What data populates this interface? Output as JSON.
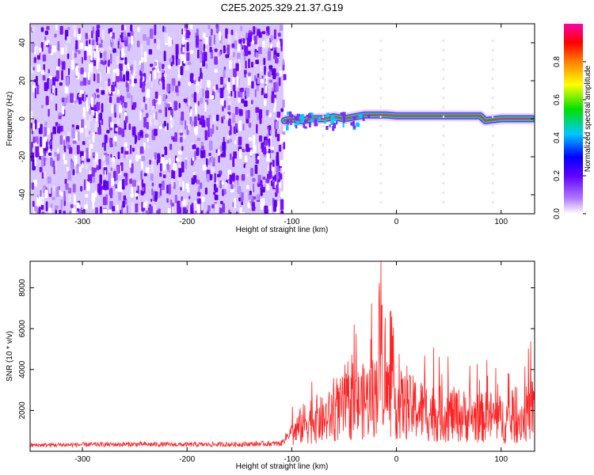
{
  "title": "C2E5.2025.329.21.37.G19",
  "chart_data": [
    {
      "type": "heatmap",
      "title": "C2E5.2025.329.21.37.G19",
      "xlabel": "Height of straight line (km)",
      "ylabel": "Frequency (Hz)",
      "xlim": [
        -350,
        132
      ],
      "ylim": [
        -50,
        50
      ],
      "xticks": [
        -300,
        -200,
        -100,
        0,
        100
      ],
      "yticks": [
        -40,
        -20,
        0,
        20,
        40
      ],
      "noise_region_x": [
        -350,
        -108
      ],
      "signal_trace": {
        "x": [
          -107,
          -100,
          -90,
          -80,
          -70,
          -60,
          -50,
          -40,
          -30,
          -20,
          -10,
          0,
          20,
          40,
          60,
          80,
          85,
          100,
          130
        ],
        "freq": [
          -1,
          0,
          -1,
          0,
          0,
          1,
          0,
          1,
          2,
          2,
          2,
          1.5,
          1.5,
          1.5,
          1.5,
          1.5,
          -1,
          0,
          0
        ]
      },
      "colorbar": {
        "label": "Normalized spectral amplitude",
        "range": [
          0,
          1
        ],
        "ticks": [
          "0.0",
          "0.2",
          "0.4",
          "0.6",
          "0.8"
        ],
        "colors": [
          "#ffffff",
          "#7a00ff",
          "#0000ff",
          "#00c8ff",
          "#00e000",
          "#ffff00",
          "#ff8000",
          "#ff0000",
          "#ff00aa"
        ]
      },
      "grid": false
    },
    {
      "type": "line",
      "xlabel": "Height of straight line (km)",
      "ylabel": "SNR (10 * v/v)",
      "xlim": [
        -350,
        132
      ],
      "ylim": [
        0,
        9300
      ],
      "xticks": [
        -300,
        -200,
        -100,
        0,
        100
      ],
      "yticks": [
        2000,
        4000,
        6000,
        8000
      ],
      "series": [
        {
          "color": "#ff2222",
          "x": [
            -350,
            -300,
            -250,
            -200,
            -150,
            -110,
            -90,
            -80,
            -70,
            -60,
            -50,
            -40,
            -30,
            -20,
            -15,
            -10,
            0,
            10,
            20,
            30,
            40,
            50,
            60,
            70,
            80,
            90,
            100,
            110,
            120,
            130
          ],
          "y": [
            350,
            380,
            400,
            380,
            400,
            450,
            2000,
            2500,
            2300,
            2800,
            3300,
            3500,
            3800,
            4200,
            8700,
            4500,
            3600,
            3300,
            3200,
            3000,
            2800,
            2800,
            2700,
            2600,
            2500,
            2600,
            2400,
            2300,
            2500,
            3200
          ]
        }
      ],
      "grid": false
    }
  ]
}
